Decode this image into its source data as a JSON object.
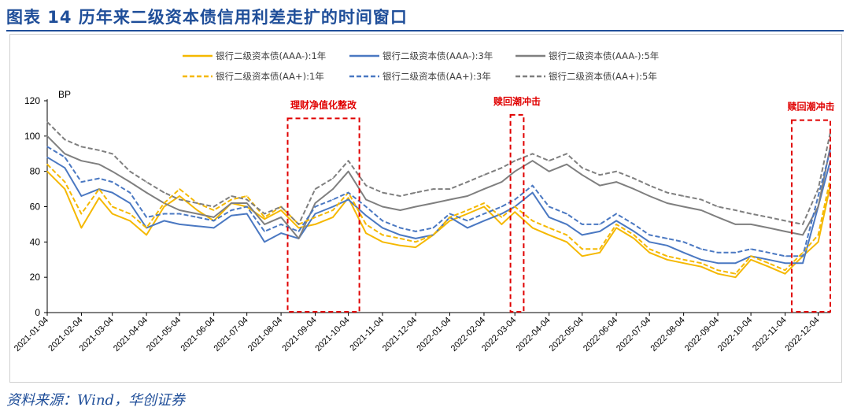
{
  "figure": {
    "title": "图表 14  历年来二级资本债信用利差走扩的时间窗口",
    "source": "资料来源：Wind，华创证券"
  },
  "colors": {
    "title_blue": "#1f4e99",
    "series_1y": "#f5b800",
    "series_3y": "#4a78c2",
    "series_5y": "#7f7f7f",
    "annotation": "#e00000"
  },
  "chart_data": {
    "type": "line",
    "ylabel": "BP",
    "ylim": [
      0,
      120
    ],
    "yticks": [
      0,
      20,
      40,
      60,
      80,
      100,
      120
    ],
    "grid": false,
    "legend_position": "top-center",
    "x_tick_labels": [
      "2021-01-04",
      "2021-02-04",
      "2021-03-04",
      "2021-04-04",
      "2021-05-04",
      "2021-06-04",
      "2021-07-04",
      "2021-08-04",
      "2021-09-04",
      "2021-10-04",
      "2021-11-04",
      "2021-12-04",
      "2022-01-04",
      "2022-02-04",
      "2022-03-04",
      "2022-04-04",
      "2022-05-04",
      "2022-06-04",
      "2022-07-04",
      "2022-08-04",
      "2022-09-04",
      "2022-10-04",
      "2022-11-04",
      "2022-12-04"
    ],
    "x": [
      "2021-01-04",
      "2021-01-20",
      "2021-02-04",
      "2021-02-20",
      "2021-03-04",
      "2021-03-20",
      "2021-04-04",
      "2021-04-20",
      "2021-05-04",
      "2021-05-20",
      "2021-06-04",
      "2021-06-20",
      "2021-07-04",
      "2021-07-20",
      "2021-08-04",
      "2021-08-20",
      "2021-09-04",
      "2021-09-20",
      "2021-10-04",
      "2021-10-20",
      "2021-11-04",
      "2021-11-20",
      "2021-12-04",
      "2021-12-20",
      "2022-01-04",
      "2022-01-20",
      "2022-02-04",
      "2022-02-20",
      "2022-03-04",
      "2022-03-20",
      "2022-04-04",
      "2022-04-20",
      "2022-05-04",
      "2022-05-20",
      "2022-06-04",
      "2022-06-20",
      "2022-07-04",
      "2022-07-20",
      "2022-08-04",
      "2022-08-20",
      "2022-09-04",
      "2022-09-20",
      "2022-10-04",
      "2022-10-20",
      "2022-11-04",
      "2022-11-20",
      "2022-12-04",
      "2022-12-15"
    ],
    "series": [
      {
        "name": "银行二级资本债(AAA-):1年",
        "color": "#f5b800",
        "dash": "solid",
        "values": [
          80,
          70,
          48,
          65,
          56,
          52,
          44,
          60,
          66,
          58,
          52,
          62,
          60,
          53,
          58,
          48,
          50,
          54,
          65,
          45,
          40,
          38,
          37,
          44,
          52,
          56,
          60,
          50,
          57,
          48,
          44,
          40,
          32,
          34,
          48,
          42,
          34,
          30,
          28,
          26,
          22,
          20,
          30,
          26,
          22,
          32,
          40,
          72
        ]
      },
      {
        "name": "银行二级资本债(AAA-):3年",
        "color": "#4a78c2",
        "dash": "solid",
        "values": [
          88,
          82,
          66,
          70,
          68,
          62,
          48,
          52,
          50,
          49,
          48,
          55,
          56,
          40,
          45,
          42,
          56,
          60,
          64,
          55,
          48,
          44,
          42,
          44,
          54,
          48,
          52,
          56,
          60,
          68,
          54,
          50,
          44,
          46,
          52,
          46,
          40,
          38,
          34,
          30,
          28,
          28,
          32,
          30,
          28,
          28,
          60,
          86
        ]
      },
      {
        "name": "银行二级资本债(AAA-):5年",
        "color": "#7f7f7f",
        "dash": "solid",
        "values": [
          100,
          90,
          86,
          84,
          80,
          74,
          68,
          62,
          58,
          56,
          54,
          62,
          62,
          50,
          54,
          42,
          62,
          70,
          80,
          64,
          60,
          58,
          60,
          62,
          64,
          66,
          70,
          74,
          80,
          86,
          80,
          84,
          78,
          72,
          74,
          70,
          66,
          62,
          60,
          58,
          54,
          50,
          50,
          48,
          46,
          44,
          60,
          94
        ]
      },
      {
        "name": "银行二级资本债(AA+):1年",
        "color": "#f5b800",
        "dash": "dashed",
        "values": [
          84,
          74,
          56,
          70,
          60,
          56,
          48,
          62,
          70,
          62,
          58,
          64,
          66,
          54,
          60,
          50,
          54,
          58,
          68,
          50,
          44,
          42,
          40,
          44,
          54,
          58,
          62,
          54,
          60,
          52,
          48,
          44,
          36,
          36,
          50,
          44,
          36,
          32,
          30,
          28,
          24,
          22,
          32,
          28,
          24,
          34,
          44,
          76
        ]
      },
      {
        "name": "银行二级资本债(AA+):3年",
        "color": "#4a78c2",
        "dash": "dashed",
        "values": [
          94,
          88,
          74,
          76,
          74,
          68,
          54,
          56,
          56,
          54,
          52,
          58,
          60,
          46,
          50,
          46,
          60,
          64,
          68,
          60,
          52,
          48,
          46,
          48,
          56,
          52,
          56,
          60,
          64,
          72,
          60,
          56,
          50,
          50,
          56,
          50,
          44,
          42,
          40,
          36,
          34,
          34,
          36,
          34,
          32,
          32,
          66,
          92
        ]
      },
      {
        "name": "银行二级资本债(AA+):5年",
        "color": "#7f7f7f",
        "dash": "dashed",
        "values": [
          108,
          98,
          94,
          92,
          90,
          80,
          74,
          68,
          64,
          62,
          60,
          66,
          64,
          56,
          60,
          50,
          70,
          76,
          86,
          72,
          68,
          66,
          68,
          70,
          70,
          74,
          78,
          82,
          86,
          90,
          86,
          90,
          82,
          78,
          80,
          76,
          72,
          68,
          66,
          64,
          60,
          58,
          56,
          54,
          52,
          50,
          70,
          102
        ]
      }
    ],
    "annotations": [
      {
        "label": "理财净值化整改",
        "start": "2021-08-10",
        "end": "2021-10-14",
        "top": 110
      },
      {
        "label": "赎回潮冲击",
        "start": "2022-02-28",
        "end": "2022-03-12",
        "top": 112
      },
      {
        "label": "赎回潮冲击",
        "start": "2022-11-10",
        "end": "2022-12-15",
        "top": 109
      }
    ]
  }
}
